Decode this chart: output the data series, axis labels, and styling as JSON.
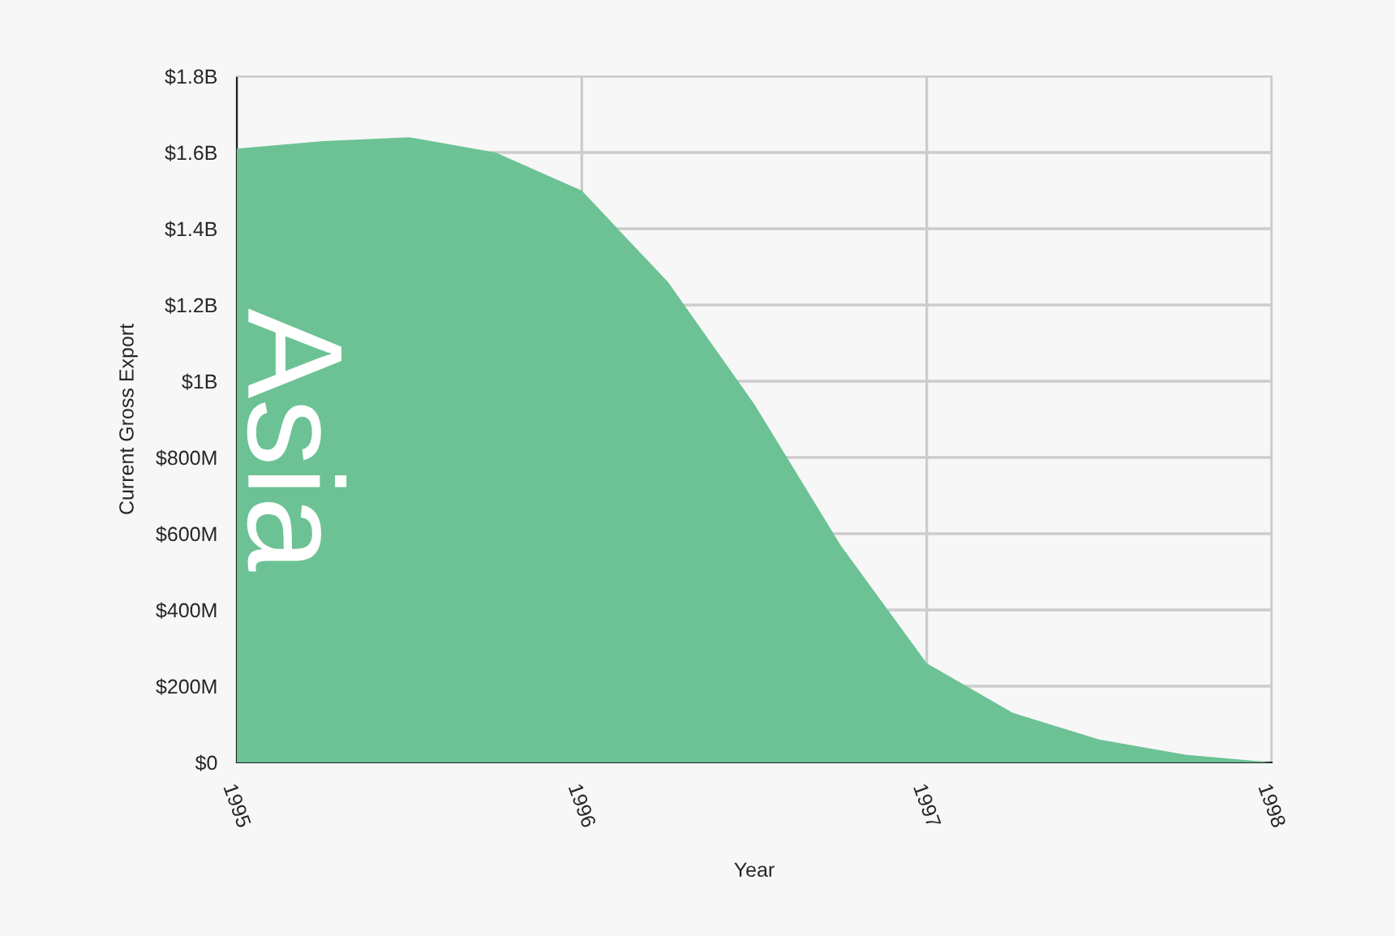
{
  "chart_data": {
    "type": "area",
    "xlabel": "Year",
    "ylabel": "Current Gross Export",
    "x": [
      1995,
      1995.25,
      1995.5,
      1995.75,
      1996,
      1996.25,
      1996.5,
      1996.75,
      1997,
      1997.25,
      1997.5,
      1997.75,
      1998
    ],
    "series": [
      {
        "name": "Asia",
        "color": "#6cc294",
        "values": [
          1610000000,
          1630000000,
          1640000000,
          1600000000,
          1500000000,
          1260000000,
          940000000,
          570000000,
          260000000,
          130000000,
          60000000,
          20000000,
          0
        ]
      }
    ],
    "xlim": [
      1995,
      1998
    ],
    "xticks": [
      1995,
      1996,
      1997,
      1998
    ],
    "ylim": [
      0,
      1800000000
    ],
    "yticks": [
      {
        "value": 0,
        "label": "$0"
      },
      {
        "value": 200000000,
        "label": "$200M"
      },
      {
        "value": 400000000,
        "label": "$400M"
      },
      {
        "value": 600000000,
        "label": "$600M"
      },
      {
        "value": 800000000,
        "label": "$800M"
      },
      {
        "value": 1000000000,
        "label": "$1B"
      },
      {
        "value": 1200000000,
        "label": "$1.2B"
      },
      {
        "value": 1400000000,
        "label": "$1.4B"
      },
      {
        "value": 1600000000,
        "label": "$1.6B"
      },
      {
        "value": 1800000000,
        "label": "$1.8B"
      }
    ],
    "grid": true,
    "legend": false
  }
}
